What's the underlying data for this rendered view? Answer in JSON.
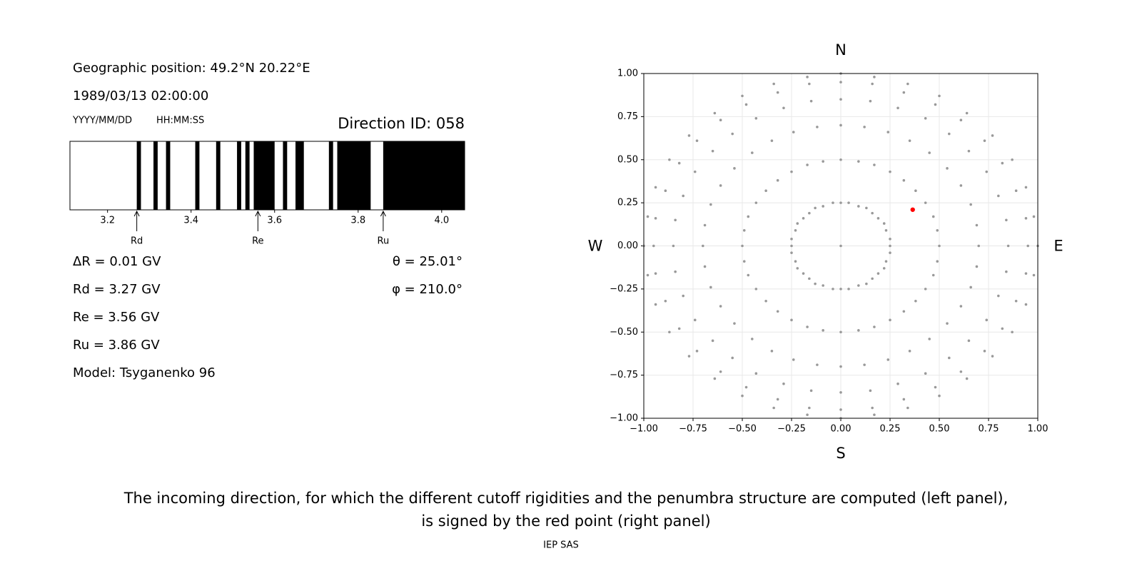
{
  "panel": {
    "position": "Geographic position: 49.2°N 20.22°E",
    "datetime": "1989/03/13 02:00:00",
    "date_format": "YYYY/MM/DD",
    "time_format": "HH:MM:SS",
    "direction": "Direction ID: 058",
    "lines": [
      "ΔR = 0.01 GV",
      "Rd = 3.27 GV",
      "Re = 3.56 GV",
      "Ru = 3.86 GV",
      "Model: Tsyganenko 96"
    ],
    "angles": [
      "θ = 25.01°",
      "φ = 210.0°"
    ]
  },
  "chart_data": [
    {
      "type": "penumbra",
      "color": "#000000",
      "xlim": [
        3.11,
        4.055
      ],
      "xticks": [
        3.2,
        3.4,
        3.6,
        3.8,
        {
          "value": 4,
          "label": "4.0"
        }
      ],
      "bands": [
        [
          3.27,
          3.28
        ],
        [
          3.31,
          3.32
        ],
        [
          3.34,
          3.35
        ],
        [
          3.41,
          3.42
        ],
        [
          3.46,
          3.47
        ],
        [
          3.51,
          3.52
        ],
        [
          3.53,
          3.54
        ],
        [
          3.55,
          3.6
        ],
        [
          3.62,
          3.63
        ],
        [
          3.65,
          3.67
        ],
        [
          3.73,
          3.74
        ],
        [
          3.75,
          3.83
        ],
        [
          3.86,
          4.055
        ]
      ],
      "markers": [
        {
          "label": "Rd",
          "value": 3.27
        },
        {
          "label": "Re",
          "value": 3.56
        },
        {
          "label": "Ru",
          "value": 3.86
        }
      ]
    },
    {
      "type": "scatter",
      "xlim": [
        -1,
        1
      ],
      "ylim": [
        -1,
        1
      ],
      "grid": true,
      "xticks": [
        {
          "value": -1,
          "label": "−1.00"
        },
        {
          "value": -0.75,
          "label": "−0.75"
        },
        {
          "value": -0.5,
          "label": "−0.50"
        },
        {
          "value": -0.25,
          "label": "−0.25"
        },
        {
          "value": 0,
          "label": "0.00"
        },
        {
          "value": 0.25,
          "label": "0.25"
        },
        {
          "value": 0.5,
          "label": "0.50"
        },
        {
          "value": 0.75,
          "label": "0.75"
        },
        {
          "value": 1,
          "label": "1.00"
        }
      ],
      "yticks": [
        {
          "value": -1,
          "label": "−1.00"
        },
        {
          "value": -0.75,
          "label": "−0.75"
        },
        {
          "value": -0.5,
          "label": "−0.50"
        },
        {
          "value": -0.25,
          "label": "−0.25"
        },
        {
          "value": 0,
          "label": "0.00"
        },
        {
          "value": 0.25,
          "label": "0.25"
        },
        {
          "value": 0.5,
          "label": "0.50"
        },
        {
          "value": 0.75,
          "label": "0.75"
        },
        {
          "value": 1,
          "label": "1.00"
        }
      ],
      "directions": {
        "north": "N",
        "south": "S",
        "west": "W",
        "east": "E"
      },
      "series": [
        {
          "color": "#999999",
          "x": [
            0,
            0,
            0.04,
            0.09,
            0.13,
            0.16,
            0.19,
            0.22,
            0.23,
            0.25,
            0.25,
            0.25,
            0.23,
            0.22,
            0.19,
            0.16,
            0.13,
            0.09,
            0.04,
            0,
            -0.04,
            -0.09,
            -0.13,
            -0.16,
            -0.19,
            -0.22,
            -0.23,
            -0.25,
            -0.25,
            -0.25,
            -0.23,
            -0.22,
            -0.19,
            -0.16,
            -0.13,
            -0.09,
            -0.04,
            0,
            0.09,
            0.17,
            0.25,
            0.32,
            0.38,
            0.43,
            0.47,
            0.49,
            0.5,
            0.49,
            0.47,
            0.43,
            0.38,
            0.32,
            0.25,
            0.17,
            0.09,
            0,
            -0.09,
            -0.17,
            -0.25,
            -0.32,
            -0.38,
            -0.43,
            -0.47,
            -0.49,
            -0.5,
            -0.49,
            -0.47,
            -0.43,
            -0.38,
            -0.32,
            -0.25,
            -0.17,
            -0.09,
            0,
            0.12,
            0.24,
            0.35,
            0.45,
            0.54,
            0.61,
            0.66,
            0.69,
            0.7,
            0.69,
            0.66,
            0.61,
            0.54,
            0.45,
            0.35,
            0.24,
            0.12,
            0,
            -0.12,
            -0.24,
            -0.35,
            -0.45,
            -0.54,
            -0.61,
            -0.66,
            -0.69,
            -0.7,
            -0.69,
            -0.66,
            -0.61,
            -0.54,
            -0.45,
            -0.35,
            -0.24,
            -0.12,
            0,
            0.15,
            0.29,
            0.43,
            0.55,
            0.65,
            0.74,
            0.8,
            0.84,
            0.85,
            0.84,
            0.8,
            0.74,
            0.65,
            0.55,
            0.43,
            0.29,
            0.15,
            0,
            -0.15,
            -0.29,
            -0.43,
            -0.55,
            -0.65,
            -0.74,
            -0.8,
            -0.84,
            -0.85,
            -0.84,
            -0.8,
            -0.74,
            -0.65,
            -0.55,
            -0.43,
            -0.29,
            -0.15,
            0,
            0.16,
            0.32,
            0.48,
            0.61,
            0.73,
            0.82,
            0.89,
            0.94,
            0.95,
            0.94,
            0.89,
            0.82,
            0.73,
            0.61,
            0.48,
            0.32,
            0.16,
            0,
            -0.16,
            -0.32,
            -0.48,
            -0.61,
            -0.73,
            -0.82,
            -0.89,
            -0.94,
            -0.95,
            -0.94,
            -0.89,
            -0.82,
            -0.73,
            -0.61,
            -0.48,
            -0.32,
            -0.16,
            0,
            0.17,
            0.34,
            0.5,
            0.64,
            0.77,
            0.87,
            0.94,
            0.98,
            1,
            0.98,
            0.94,
            0.87,
            0.77,
            0.64,
            0.5,
            0.34,
            0.17,
            0,
            -0.17,
            -0.34,
            -0.5,
            -0.64,
            -0.77,
            -0.87,
            -0.94,
            -0.98,
            -1,
            -0.98,
            -0.94,
            -0.87,
            -0.77,
            -0.64,
            -0.5,
            -0.34,
            -0.17
          ],
          "y": [
            0,
            0.25,
            0.25,
            0.23,
            0.22,
            0.19,
            0.16,
            0.13,
            0.09,
            0.04,
            0,
            -0.04,
            -0.09,
            -0.13,
            -0.16,
            -0.19,
            -0.22,
            -0.23,
            -0.25,
            -0.25,
            -0.25,
            -0.23,
            -0.22,
            -0.19,
            -0.16,
            -0.13,
            -0.09,
            -0.04,
            0,
            0.04,
            0.09,
            0.13,
            0.16,
            0.19,
            0.22,
            0.23,
            0.25,
            0.5,
            0.49,
            0.47,
            0.43,
            0.38,
            0.32,
            0.25,
            0.17,
            0.09,
            0,
            -0.09,
            -0.17,
            -0.25,
            -0.32,
            -0.38,
            -0.43,
            -0.47,
            -0.49,
            -0.5,
            -0.49,
            -0.47,
            -0.43,
            -0.38,
            -0.32,
            -0.25,
            -0.17,
            -0.09,
            0,
            0.09,
            0.17,
            0.25,
            0.32,
            0.38,
            0.43,
            0.47,
            0.49,
            0.7,
            0.69,
            0.66,
            0.61,
            0.54,
            0.45,
            0.35,
            0.24,
            0.12,
            0,
            -0.12,
            -0.24,
            -0.35,
            -0.45,
            -0.54,
            -0.61,
            -0.66,
            -0.69,
            -0.7,
            -0.69,
            -0.66,
            -0.61,
            -0.54,
            -0.45,
            -0.35,
            -0.24,
            -0.12,
            0,
            0.12,
            0.24,
            0.35,
            0.45,
            0.54,
            0.61,
            0.66,
            0.69,
            0.85,
            0.84,
            0.8,
            0.74,
            0.65,
            0.55,
            0.43,
            0.29,
            0.15,
            0,
            -0.15,
            -0.29,
            -0.43,
            -0.55,
            -0.65,
            -0.74,
            -0.8,
            -0.84,
            -0.85,
            -0.84,
            -0.8,
            -0.74,
            -0.65,
            -0.55,
            -0.43,
            -0.29,
            -0.15,
            0,
            0.15,
            0.29,
            0.43,
            0.55,
            0.65,
            0.74,
            0.8,
            0.84,
            0.95,
            0.94,
            0.89,
            0.82,
            0.73,
            0.61,
            0.48,
            0.32,
            0.16,
            0,
            -0.16,
            -0.32,
            -0.48,
            -0.61,
            -0.73,
            -0.82,
            -0.89,
            -0.94,
            -0.95,
            -0.94,
            -0.89,
            -0.82,
            -0.73,
            -0.61,
            -0.48,
            -0.32,
            -0.16,
            0,
            0.16,
            0.32,
            0.48,
            0.61,
            0.73,
            0.82,
            0.89,
            0.94,
            1,
            0.98,
            0.94,
            0.87,
            0.77,
            0.64,
            0.5,
            0.34,
            0.17,
            0,
            -0.17,
            -0.34,
            -0.5,
            -0.64,
            -0.77,
            -0.87,
            -0.94,
            -0.98,
            -1,
            -0.98,
            -0.94,
            -0.87,
            -0.77,
            -0.64,
            -0.5,
            -0.34,
            -0.17,
            0,
            0.17,
            0.34,
            0.5,
            0.64,
            0.77,
            0.87,
            0.94,
            0.98
          ]
        },
        {
          "color": "#ff0000",
          "x": [
            0.365
          ],
          "y": [
            0.21
          ]
        }
      ]
    }
  ],
  "caption": [
    "The incoming direction, for which the different cutoff rigidities and the penumbra structure are computed (left panel),",
    "is signed by the red point (right panel)"
  ],
  "footer": "IEP SAS"
}
